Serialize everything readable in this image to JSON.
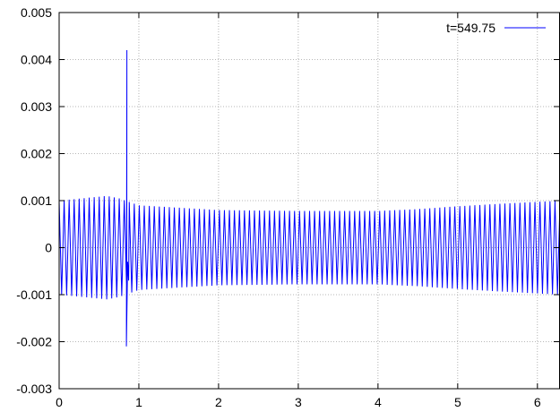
{
  "chart_data": {
    "type": "line",
    "title": "",
    "xlabel": "",
    "ylabel": "",
    "xlim": [
      0,
      6.2832
    ],
    "ylim": [
      -0.003,
      0.005
    ],
    "grid": true,
    "legend_position": "top-right",
    "x_ticks": [
      "0",
      "1",
      "2",
      "3",
      "4",
      "5",
      "6"
    ],
    "x_tick_values": [
      0,
      1,
      2,
      3,
      4,
      5,
      6
    ],
    "y_ticks": [
      "-0.003",
      "-0.002",
      "-0.001",
      "0",
      "0.001",
      "0.002",
      "0.003",
      "0.004",
      "0.005"
    ],
    "y_tick_values": [
      -0.003,
      -0.002,
      -0.001,
      0,
      0.001,
      0.002,
      0.003,
      0.004,
      0.005
    ],
    "series": [
      {
        "name": "t=549.75",
        "color": "#0000ff",
        "oscillations": 100,
        "envelope": [
          {
            "x": 0.0,
            "amp": 0.001
          },
          {
            "x": 0.6,
            "amp": 0.0011
          },
          {
            "x": 0.75,
            "amp": 0.00105
          },
          {
            "x": 1.0,
            "amp": 0.0009
          },
          {
            "x": 1.5,
            "amp": 0.00085
          },
          {
            "x": 2.0,
            "amp": 0.0008
          },
          {
            "x": 3.0,
            "amp": 0.00078
          },
          {
            "x": 4.0,
            "amp": 0.00078
          },
          {
            "x": 4.5,
            "amp": 0.00082
          },
          {
            "x": 5.0,
            "amp": 0.00088
          },
          {
            "x": 5.5,
            "amp": 0.00093
          },
          {
            "x": 6.2832,
            "amp": 0.001
          }
        ],
        "spike": {
          "x": 0.85,
          "max": 0.0042,
          "min": -0.0021
        }
      }
    ]
  }
}
